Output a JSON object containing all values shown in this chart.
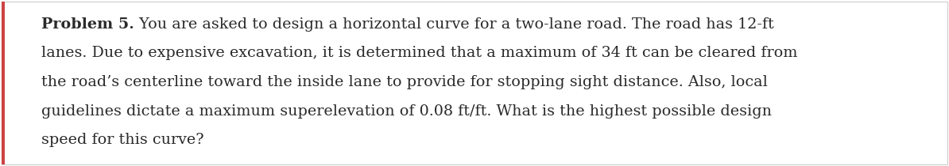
{
  "bold_part": "Problem 5.",
  "line1_rest": " You are asked to design a horizontal curve for a two-lane road. The road has 12-ft",
  "line2": "lanes. Due to expensive excavation, it is determined that a maximum of 34 ft can be cleared from",
  "line3": "the road’s centerline toward the inside lane to provide for stopping sight distance. Also, local",
  "line4": "guidelines dictate a maximum superelevation of 0.08 ft/ft. What is the highest possible design",
  "line5": "speed for this curve?",
  "font_family": "DejaVu Serif",
  "font_size": 13.8,
  "text_color": "#2a2a2a",
  "background_color": "#ffffff",
  "border_color": "#cccccc",
  "left_bar_color": "#cc4444",
  "fig_width": 11.94,
  "fig_height": 2.1,
  "dpi": 100
}
